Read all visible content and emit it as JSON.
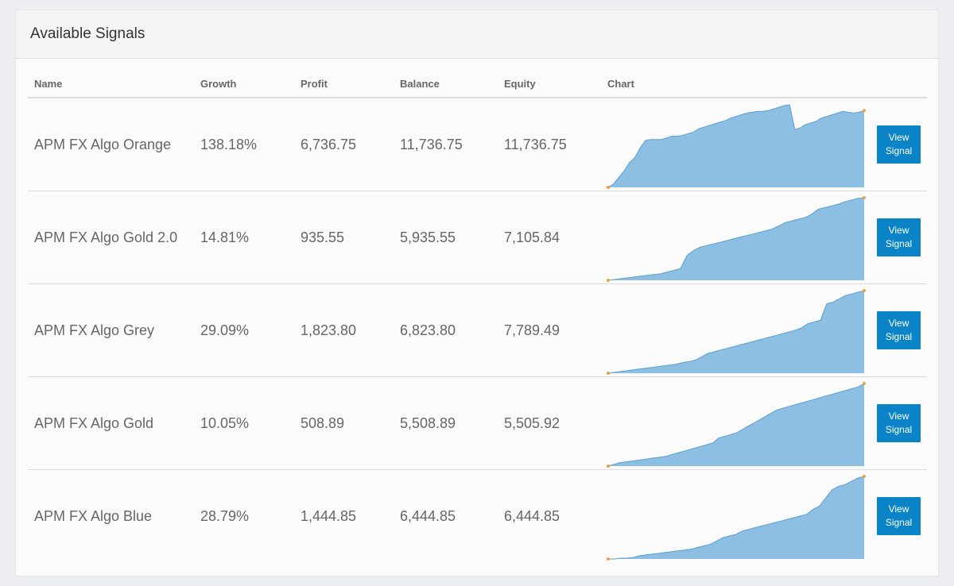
{
  "panel": {
    "title": "Available Signals"
  },
  "table": {
    "headers": {
      "name": "Name",
      "growth": "Growth",
      "profit": "Profit",
      "balance": "Balance",
      "equity": "Equity",
      "chart": "Chart"
    },
    "rows": [
      {
        "name": "APM FX Algo Orange",
        "growth": "138.18%",
        "profit": "6,736.75",
        "balance": "11,736.75",
        "equity": "11,736.75",
        "button": "View Signal",
        "spark": [
          0,
          4,
          12,
          20,
          30,
          36,
          48,
          57,
          58,
          58,
          58,
          60,
          62,
          62,
          63,
          65,
          67,
          71,
          73,
          75,
          77,
          79,
          81,
          84,
          86,
          88,
          90,
          91,
          92,
          92,
          93,
          95,
          97,
          99,
          100,
          70,
          72,
          76,
          78,
          80,
          84,
          86,
          88,
          90,
          92,
          91,
          90,
          91,
          93
        ]
      },
      {
        "name": "APM FX Algo Gold 2.0",
        "growth": "14.81%",
        "profit": "935.55",
        "balance": "5,935.55",
        "equity": "7,105.84",
        "button": "View Signal",
        "spark": [
          0,
          1,
          2,
          3,
          4,
          5,
          6,
          7,
          8,
          10,
          12,
          14,
          30,
          36,
          40,
          42,
          44,
          46,
          48,
          50,
          52,
          54,
          56,
          58,
          60,
          62,
          66,
          70,
          72,
          74,
          76,
          80,
          86,
          88,
          90,
          92,
          95,
          97,
          99,
          100
        ]
      },
      {
        "name": "APM FX Algo Grey",
        "growth": "29.09%",
        "profit": "1,823.80",
        "balance": "6,823.80",
        "equity": "7,789.49",
        "button": "View Signal",
        "spark": [
          0,
          1,
          2,
          3,
          4,
          5,
          6,
          7,
          8,
          9,
          10,
          11,
          13,
          14,
          16,
          20,
          24,
          26,
          28,
          30,
          32,
          34,
          36,
          38,
          40,
          42,
          44,
          46,
          48,
          50,
          52,
          55,
          60,
          62,
          64,
          84,
          86,
          90,
          94,
          96,
          98,
          100
        ]
      },
      {
        "name": "APM FX Algo Gold",
        "growth": "10.05%",
        "profit": "508.89",
        "balance": "5,508.89",
        "equity": "5,505.92",
        "button": "View Signal",
        "spark": [
          0,
          2,
          4,
          5,
          6,
          7,
          8,
          9,
          10,
          11,
          12,
          14,
          16,
          18,
          20,
          22,
          24,
          26,
          28,
          34,
          36,
          38,
          40,
          44,
          48,
          52,
          56,
          60,
          64,
          68,
          70,
          72,
          74,
          76,
          78,
          80,
          82,
          84,
          86,
          88,
          90,
          92,
          94,
          96,
          100
        ]
      },
      {
        "name": "APM FX Algo Blue",
        "growth": "28.79%",
        "profit": "1,444.85",
        "balance": "6,444.85",
        "equity": "6,444.85",
        "button": "View Signal",
        "spark": [
          0,
          0,
          1,
          1,
          2,
          4,
          5,
          6,
          7,
          8,
          9,
          10,
          11,
          12,
          14,
          16,
          18,
          22,
          26,
          28,
          30,
          34,
          36,
          38,
          40,
          42,
          44,
          46,
          48,
          50,
          52,
          54,
          60,
          64,
          74,
          84,
          88,
          90,
          94,
          98,
          100
        ]
      }
    ]
  },
  "colors": {
    "accent": "#0a84c6",
    "chart_fill": "#8dbfe2",
    "chart_line": "#5b9fd3",
    "chart_point": "#f0a23a"
  }
}
